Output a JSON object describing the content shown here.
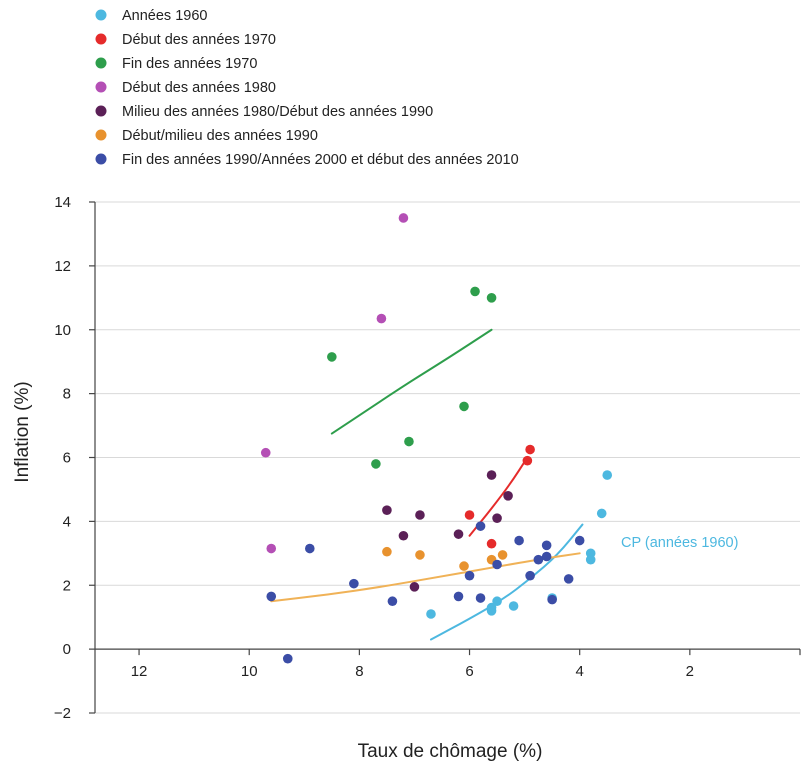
{
  "chart_data": {
    "type": "scatter",
    "title": "",
    "xlabel": "Taux de chômage (%)",
    "ylabel": "Inflation (%)",
    "xlim": [
      12.8,
      0
    ],
    "ylim": [
      -2,
      14
    ],
    "x_reversed": true,
    "x_ticks": [
      12,
      10,
      8,
      6,
      4,
      2
    ],
    "y_ticks": [
      14,
      12,
      10,
      8,
      6,
      4,
      2,
      0,
      -2
    ],
    "x_tick_labels": [
      "12",
      "10",
      "8",
      "6",
      "4",
      "2"
    ],
    "y_tick_labels": [
      "14",
      "12",
      "10",
      "8",
      "6",
      "4",
      "2",
      "0",
      "−2"
    ],
    "legend_position": "top-left",
    "series": [
      {
        "name": "Années 1960",
        "color": "#4db8e0",
        "points": [
          [
            6.7,
            1.1
          ],
          [
            5.6,
            1.2
          ],
          [
            5.6,
            1.3
          ],
          [
            5.5,
            1.5
          ],
          [
            5.2,
            1.35
          ],
          [
            4.5,
            1.6
          ],
          [
            3.8,
            3.0
          ],
          [
            3.8,
            2.8
          ],
          [
            3.6,
            4.25
          ],
          [
            3.5,
            5.45
          ]
        ]
      },
      {
        "name": "Début des années 1970",
        "color": "#e52b2b",
        "points": [
          [
            6.0,
            4.2
          ],
          [
            5.6,
            3.3
          ],
          [
            4.95,
            5.9
          ],
          [
            4.9,
            6.25
          ]
        ]
      },
      {
        "name": "Fin des années 1970",
        "color": "#2e9e4c",
        "points": [
          [
            8.5,
            9.15
          ],
          [
            7.7,
            5.8
          ],
          [
            7.1,
            6.5
          ],
          [
            6.1,
            7.6
          ],
          [
            5.9,
            11.2
          ],
          [
            5.6,
            11.0
          ]
        ]
      },
      {
        "name": "Début des années 1980",
        "color": "#b44fb5",
        "points": [
          [
            9.7,
            6.15
          ],
          [
            9.6,
            3.15
          ],
          [
            7.6,
            10.35
          ],
          [
            7.2,
            13.5
          ]
        ]
      },
      {
        "name": "Milieu des années 1980/Début des années 1990",
        "color": "#5b2057",
        "points": [
          [
            7.5,
            4.35
          ],
          [
            7.2,
            3.55
          ],
          [
            7.0,
            1.95
          ],
          [
            6.9,
            4.2
          ],
          [
            6.2,
            3.6
          ],
          [
            5.6,
            5.45
          ],
          [
            5.5,
            4.1
          ],
          [
            5.3,
            4.8
          ]
        ]
      },
      {
        "name": "Début/milieu des années 1990",
        "color": "#e8922e",
        "points": [
          [
            7.5,
            3.05
          ],
          [
            6.9,
            2.95
          ],
          [
            6.1,
            2.6
          ],
          [
            5.6,
            2.8
          ],
          [
            5.4,
            2.95
          ]
        ]
      },
      {
        "name": "Fin des années 1990/Années 2000 et début des années 2010",
        "color": "#3b4da6",
        "points": [
          [
            9.6,
            1.65
          ],
          [
            9.3,
            -0.3
          ],
          [
            8.9,
            3.15
          ],
          [
            8.1,
            2.05
          ],
          [
            7.4,
            1.5
          ],
          [
            6.2,
            1.65
          ],
          [
            6.0,
            2.3
          ],
          [
            5.8,
            1.6
          ],
          [
            5.8,
            3.85
          ],
          [
            5.5,
            2.65
          ],
          [
            5.1,
            3.4
          ],
          [
            4.9,
            2.3
          ],
          [
            4.75,
            2.8
          ],
          [
            4.6,
            2.9
          ],
          [
            4.6,
            3.25
          ],
          [
            4.5,
            1.55
          ],
          [
            4.2,
            2.2
          ],
          [
            4.0,
            3.4
          ]
        ]
      }
    ],
    "curves": [
      {
        "name": "CP (années 1960)",
        "color": "#4db8e0",
        "points": [
          [
            6.7,
            0.3
          ],
          [
            6.0,
            0.95
          ],
          [
            5.4,
            1.55
          ],
          [
            4.9,
            2.2
          ],
          [
            4.4,
            2.95
          ],
          [
            3.95,
            3.9
          ]
        ]
      },
      {
        "name": "Début des années 1970 curve",
        "color": "#e52b2b",
        "points": [
          [
            6.0,
            3.55
          ],
          [
            5.6,
            4.4
          ],
          [
            5.25,
            5.2
          ],
          [
            4.95,
            6.0
          ]
        ]
      },
      {
        "name": "Fin des années 1970 curve",
        "color": "#2e9e4c",
        "points": [
          [
            8.5,
            6.75
          ],
          [
            7.8,
            7.55
          ],
          [
            7.1,
            8.35
          ],
          [
            6.4,
            9.1
          ],
          [
            5.6,
            10.0
          ]
        ]
      },
      {
        "name": "Début/milieu des années 1990 curve",
        "color": "#f0b257",
        "points": [
          [
            9.6,
            1.5
          ],
          [
            8.6,
            1.7
          ],
          [
            7.6,
            1.95
          ],
          [
            6.6,
            2.25
          ],
          [
            5.6,
            2.55
          ],
          [
            4.6,
            2.85
          ],
          [
            4.0,
            3.0
          ]
        ]
      }
    ],
    "annotations": [
      {
        "text": "CP (années 1960)",
        "x": 3.25,
        "y": 3.35,
        "color": "#4db8e0"
      }
    ]
  }
}
